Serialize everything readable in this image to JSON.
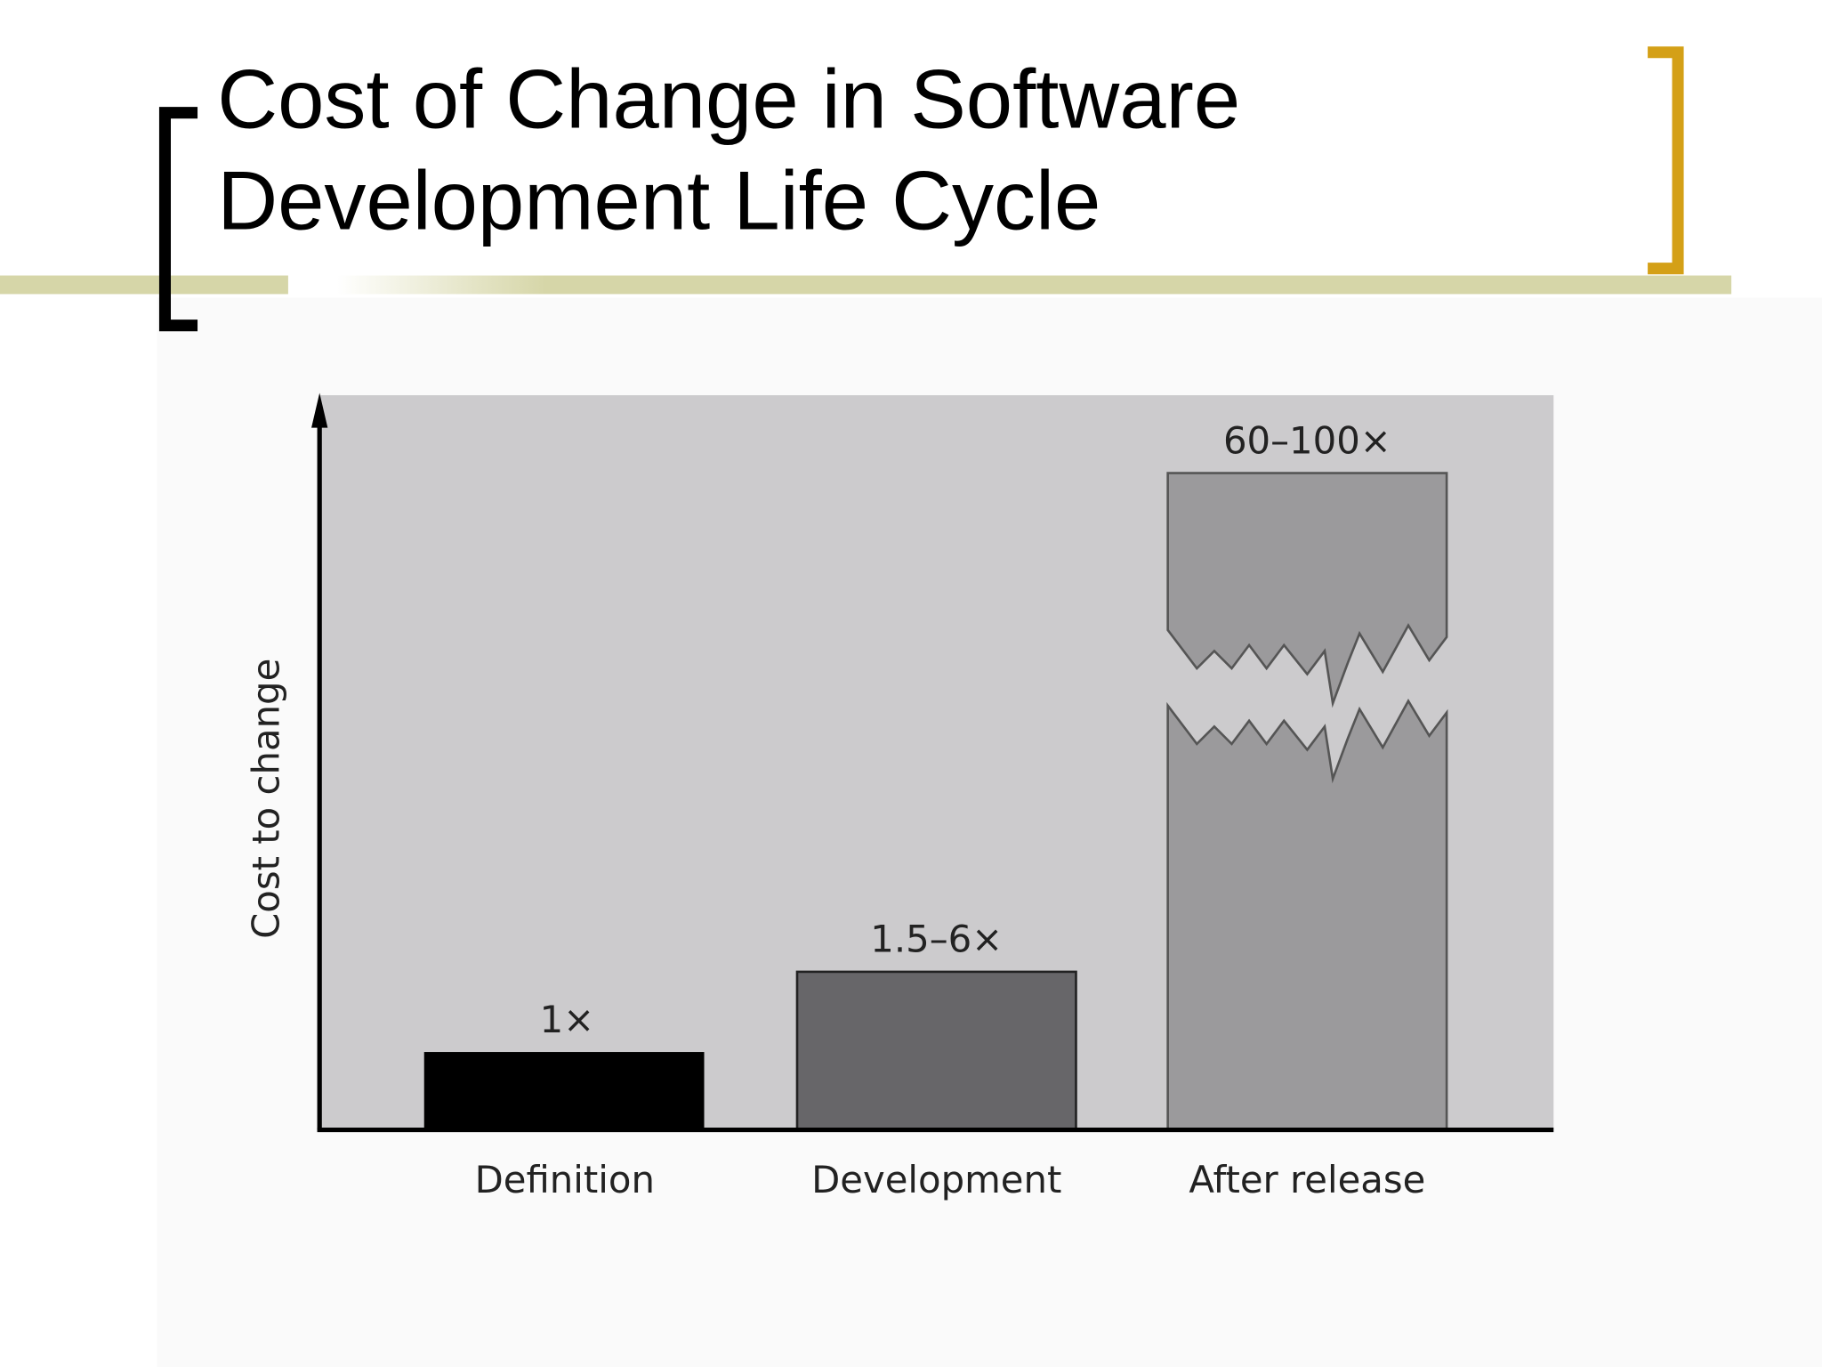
{
  "slide": {
    "title": [
      "Cost of Change in Software",
      "Development Life Cycle"
    ],
    "figure": {
      "y_label": "Cost to change",
      "bars": [
        {
          "category": "Definition",
          "label": "1×"
        },
        {
          "category": "Development",
          "label": "1.5–6×"
        },
        {
          "category": "After release",
          "label": "60–100×"
        }
      ]
    }
  }
}
